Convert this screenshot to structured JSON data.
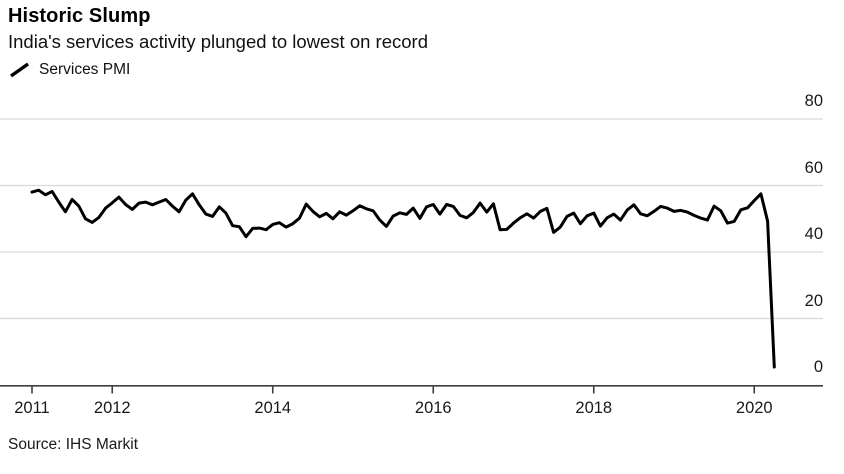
{
  "header": {
    "title": "Historic Slump",
    "subtitle": "India's services activity plunged to lowest on record"
  },
  "legend": {
    "items": [
      {
        "label": "Services PMI",
        "marker": "line-slash-icon",
        "color": "#000000"
      }
    ]
  },
  "footer": {
    "source": "Source: IHS Markit"
  },
  "colors": {
    "background": "#ffffff",
    "line": "#000000",
    "grid": "#d9d9d9",
    "axis": "#3d3d3d",
    "text": "#1a1a1a"
  },
  "chart_data": {
    "type": "line",
    "title": "Historic Slump",
    "subtitle": "India's services activity plunged to lowest on record",
    "source": "Source: IHS Markit",
    "grid": "horizontal-only",
    "legend_position": "top-left",
    "y_axis_position": "right",
    "y_ticks": [
      0,
      20,
      40,
      60,
      80
    ],
    "ylim": [
      0,
      84
    ],
    "x_tick_years": [
      2011,
      2012,
      2014,
      2016,
      2018,
      2020
    ],
    "x_tick_labels": [
      "2011",
      "2012",
      "2014",
      "2016",
      "2018",
      "2020"
    ],
    "xlim_years": [
      2010.6,
      2020.9
    ],
    "series": [
      {
        "name": "Services PMI",
        "color": "#000000",
        "x_start": "2011-01",
        "frequency": "monthly",
        "last_point": "2020-04",
        "min_value": 5.4,
        "max_value": 58.6,
        "values": [
          58.0,
          58.6,
          57.2,
          58.2,
          55.0,
          52.1,
          55.8,
          53.8,
          50.0,
          48.9,
          50.4,
          53.2,
          54.8,
          56.5,
          54.3,
          52.8,
          54.7,
          55.0,
          54.2,
          55.0,
          55.8,
          53.8,
          52.1,
          55.6,
          57.5,
          54.2,
          51.4,
          50.7,
          53.6,
          51.7,
          47.9,
          47.6,
          44.6,
          47.1,
          47.2,
          46.7,
          48.3,
          48.8,
          47.5,
          48.5,
          50.2,
          54.4,
          52.2,
          50.6,
          51.6,
          50.0,
          52.1,
          51.1,
          52.4,
          53.9,
          53.0,
          52.4,
          49.6,
          47.7,
          50.8,
          51.8,
          51.3,
          53.2,
          50.1,
          53.6,
          54.3,
          51.4,
          54.3,
          53.7,
          51.0,
          50.3,
          51.9,
          54.7,
          52.0,
          54.5,
          46.7,
          46.8,
          48.7,
          50.3,
          51.5,
          50.2,
          52.2,
          53.1,
          45.9,
          47.5,
          50.7,
          51.7,
          48.5,
          50.9,
          51.7,
          47.8,
          50.3,
          51.4,
          49.6,
          52.6,
          54.2,
          51.5,
          50.9,
          52.2,
          53.7,
          53.2,
          52.2,
          52.5,
          52.0,
          51.0,
          50.2,
          49.6,
          53.8,
          52.4,
          48.7,
          49.2,
          52.7,
          53.3,
          55.5,
          57.5,
          49.3,
          5.4
        ]
      }
    ]
  }
}
